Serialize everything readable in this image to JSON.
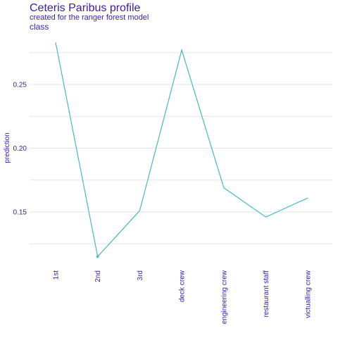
{
  "chart_data": {
    "type": "line",
    "title": "Ceteris Paribus profile",
    "subtitle": "created for the ranger forest model",
    "variable": "class",
    "xlabel": "",
    "ylabel": "prediction",
    "categories": [
      "1st",
      "2nd",
      "3rd",
      "deck crew",
      "engineering crew",
      "restaurant staff",
      "victualling crew"
    ],
    "series": [
      {
        "values": [
          0.283,
          0.115,
          0.151,
          0.277,
          0.169,
          0.146,
          0.161
        ]
      }
    ],
    "highlight_index": 1,
    "yticks": [
      0.15,
      0.2,
      0.25
    ],
    "ytick_labels": [
      "0.15",
      "0.20",
      "0.25"
    ],
    "ylim": [
      0.1,
      0.3
    ],
    "grid": true,
    "colors": {
      "line": "#46bac2",
      "text": "#371ea3",
      "grid": "#e6e6e6"
    }
  }
}
